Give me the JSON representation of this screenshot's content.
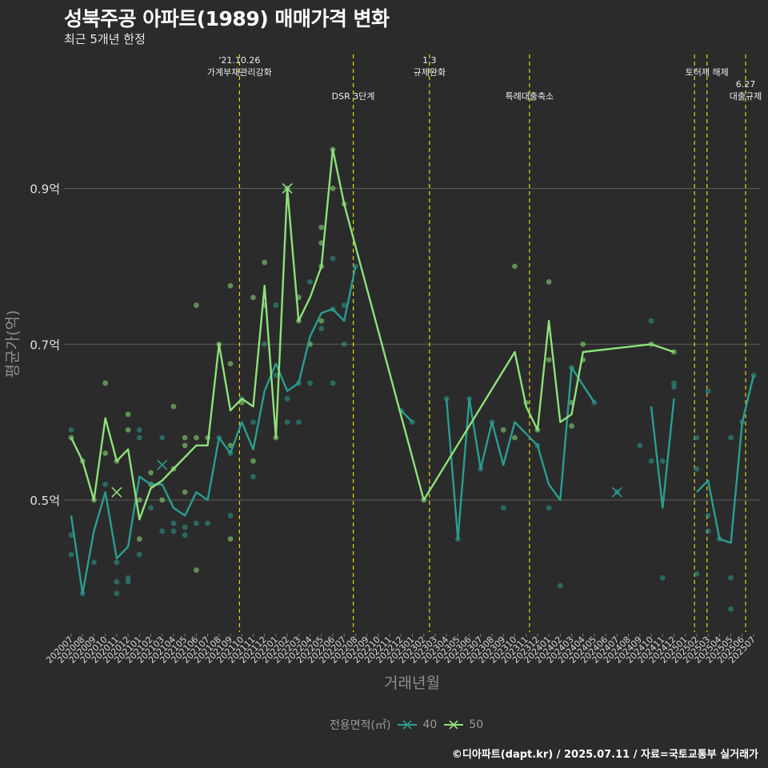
{
  "chart_data": {
    "type": "line",
    "title": "성북주공 아파트(1989) 매매가격 변화",
    "subtitle": "최근 5개년 한정",
    "xlabel": "거래년월",
    "ylabel": "평균가(억)",
    "caption": "©디아파트(dapt.kr) / 2025.07.11 / 자료=국토교통부 실거래가",
    "legend": {
      "title": "전용면적(㎡)",
      "placement": "bottom"
    },
    "ylim": [
      0.33,
      1.07
    ],
    "y_ticks": [
      {
        "value": 0.5,
        "label": "0.5억"
      },
      {
        "value": 0.7,
        "label": "0.7억"
      },
      {
        "value": 0.9,
        "label": "0.9억"
      }
    ],
    "grid": true,
    "categories": [
      "202007",
      "202008",
      "202009",
      "202010",
      "202011",
      "202012",
      "202101",
      "202102",
      "202103",
      "202104",
      "202105",
      "202106",
      "202107",
      "202108",
      "202109",
      "202110",
      "202111",
      "202112",
      "202201",
      "202202",
      "202203",
      "202204",
      "202205",
      "202206",
      "202207",
      "202208",
      "202209",
      "202210",
      "202211",
      "202212",
      "202301",
      "202302",
      "202303",
      "202304",
      "202305",
      "202306",
      "202307",
      "202308",
      "202309",
      "202310",
      "202311",
      "202312",
      "202401",
      "202402",
      "202403",
      "202404",
      "202405",
      "202406",
      "202407",
      "202408",
      "202409",
      "202410",
      "202411",
      "202412",
      "202501",
      "202502",
      "202503",
      "202504",
      "202505",
      "202506",
      "202507"
    ],
    "colors": {
      "40": "#2a9d8f",
      "50": "#8ee07a",
      "vline": "#e6d21c"
    },
    "series": [
      {
        "name": "40",
        "line": [
          [
            0,
            0.48
          ],
          [
            1,
            0.38
          ],
          [
            2,
            0.46
          ],
          [
            3,
            0.51
          ],
          [
            4,
            0.425
          ],
          [
            5,
            0.44
          ],
          [
            6,
            0.53
          ],
          [
            7,
            0.52
          ],
          [
            8,
            0.52
          ],
          [
            9,
            0.49
          ],
          [
            10,
            0.48
          ],
          [
            11,
            0.51
          ],
          [
            12,
            0.5
          ],
          [
            13,
            0.58
          ],
          [
            14,
            0.56
          ],
          [
            15,
            0.6
          ],
          [
            16,
            0.565
          ],
          [
            17,
            0.64
          ],
          [
            18,
            0.675
          ],
          [
            19,
            0.64
          ],
          [
            20,
            0.65
          ],
          [
            21,
            0.71
          ],
          [
            22,
            0.74
          ],
          [
            23,
            0.745
          ],
          [
            24,
            0.73
          ],
          [
            25,
            0.8
          ],
          null,
          [
            29,
            0.615
          ],
          [
            30,
            0.6
          ],
          null,
          [
            33,
            0.63
          ],
          [
            34,
            0.45
          ],
          [
            35,
            0.63
          ],
          [
            36,
            0.54
          ],
          [
            37,
            0.6
          ],
          [
            38,
            0.545
          ],
          [
            39,
            0.6
          ],
          [
            41,
            0.57
          ],
          [
            42,
            0.52
          ],
          [
            43,
            0.5
          ],
          [
            44,
            0.67
          ],
          [
            46,
            0.625
          ],
          null,
          [
            51,
            0.62
          ],
          [
            52,
            0.49
          ],
          [
            53,
            0.63
          ],
          null,
          [
            55,
            0.51
          ],
          [
            56,
            0.525
          ],
          [
            57,
            0.45
          ],
          [
            58,
            0.445
          ],
          [
            59,
            0.6
          ],
          [
            60,
            0.66
          ]
        ],
        "points": [
          [
            0,
            0.455
          ],
          [
            0,
            0.43
          ],
          [
            0,
            0.59
          ],
          [
            1,
            0.38
          ],
          [
            2,
            0.42
          ],
          [
            3,
            0.52
          ],
          [
            4,
            0.38
          ],
          [
            4,
            0.395
          ],
          [
            4,
            0.42
          ],
          [
            5,
            0.4
          ],
          [
            5,
            0.395
          ],
          [
            6,
            0.43
          ],
          [
            6,
            0.58
          ],
          [
            6,
            0.59
          ],
          [
            7,
            0.49
          ],
          [
            8,
            0.46
          ],
          [
            8,
            0.58
          ],
          [
            9,
            0.46
          ],
          [
            9,
            0.47
          ],
          [
            10,
            0.465
          ],
          [
            10,
            0.455
          ],
          [
            11,
            0.47
          ],
          [
            12,
            0.47
          ],
          [
            13,
            0.58
          ],
          [
            14,
            0.48
          ],
          [
            14,
            0.56
          ],
          [
            15,
            0.63
          ],
          [
            16,
            0.53
          ],
          [
            16,
            0.6
          ],
          [
            17,
            0.7
          ],
          [
            18,
            0.75
          ],
          [
            18,
            0.66
          ],
          [
            19,
            0.63
          ],
          [
            19,
            0.6
          ],
          [
            20,
            0.6
          ],
          [
            20,
            0.65
          ],
          [
            21,
            0.78
          ],
          [
            21,
            0.65
          ],
          [
            22,
            0.72
          ],
          [
            23,
            0.81
          ],
          [
            23,
            0.65
          ],
          [
            23,
            0.745
          ],
          [
            24,
            0.75
          ],
          [
            24,
            0.7
          ],
          [
            25,
            0.8
          ],
          [
            29,
            0.615
          ],
          [
            30,
            0.6
          ],
          [
            33,
            0.63
          ],
          [
            34,
            0.45
          ],
          [
            35,
            0.63
          ],
          [
            36,
            0.54
          ],
          [
            37,
            0.6
          ],
          [
            38,
            0.49
          ],
          [
            41,
            0.57
          ],
          [
            42,
            0.49
          ],
          [
            43,
            0.39
          ],
          [
            44,
            0.67
          ],
          [
            46,
            0.625
          ],
          [
            48,
            0.51
          ],
          [
            50,
            0.57
          ],
          [
            51,
            0.73
          ],
          [
            51,
            0.55
          ],
          [
            52,
            0.4
          ],
          [
            52,
            0.55
          ],
          [
            53,
            0.65
          ],
          [
            53,
            0.645
          ],
          [
            55,
            0.405
          ],
          [
            55,
            0.58
          ],
          [
            55,
            0.54
          ],
          [
            56,
            0.64
          ],
          [
            56,
            0.48
          ],
          [
            56,
            0.46
          ],
          [
            57,
            0.45
          ],
          [
            58,
            0.4
          ],
          [
            58,
            0.36
          ],
          [
            58,
            0.58
          ],
          [
            59,
            0.6
          ],
          [
            60,
            0.66
          ]
        ],
        "crosses": [
          [
            8,
            0.545
          ],
          [
            48,
            0.51
          ]
        ]
      },
      {
        "name": "50",
        "line": [
          [
            0,
            0.58
          ],
          [
            1,
            0.55
          ],
          [
            2,
            0.5
          ],
          [
            3,
            0.605
          ],
          [
            4,
            0.55
          ],
          [
            5,
            0.565
          ],
          [
            6,
            0.475
          ],
          [
            7,
            0.515
          ],
          [
            8,
            0.525
          ],
          [
            9,
            0.54
          ],
          [
            10,
            0.555
          ],
          [
            11,
            0.57
          ],
          [
            12,
            0.57
          ],
          [
            13,
            0.7
          ],
          [
            14,
            0.615
          ],
          [
            15,
            0.63
          ],
          [
            16,
            0.62
          ],
          [
            17,
            0.775
          ],
          [
            18,
            0.58
          ],
          [
            19,
            0.9
          ],
          [
            20,
            0.73
          ],
          [
            21,
            0.76
          ],
          [
            22,
            0.8
          ],
          [
            23,
            0.95
          ],
          [
            24,
            0.88
          ],
          [
            31,
            0.5
          ],
          [
            39,
            0.69
          ],
          [
            40,
            0.62
          ],
          [
            41,
            0.59
          ],
          [
            42,
            0.73
          ],
          [
            43,
            0.6
          ],
          [
            44,
            0.61
          ],
          [
            45,
            0.69
          ],
          [
            51,
            0.7
          ],
          [
            53,
            0.69
          ]
        ],
        "points": [
          [
            0,
            0.58
          ],
          [
            1,
            0.55
          ],
          [
            2,
            0.5
          ],
          [
            3,
            0.65
          ],
          [
            3,
            0.56
          ],
          [
            4,
            0.55
          ],
          [
            5,
            0.61
          ],
          [
            5,
            0.59
          ],
          [
            6,
            0.45
          ],
          [
            6,
            0.5
          ],
          [
            7,
            0.535
          ],
          [
            7,
            0.52
          ],
          [
            8,
            0.5
          ],
          [
            9,
            0.62
          ],
          [
            9,
            0.54
          ],
          [
            10,
            0.58
          ],
          [
            10,
            0.51
          ],
          [
            10,
            0.57
          ],
          [
            11,
            0.75
          ],
          [
            11,
            0.41
          ],
          [
            11,
            0.58
          ],
          [
            12,
            0.58
          ],
          [
            13,
            0.7
          ],
          [
            14,
            0.775
          ],
          [
            14,
            0.675
          ],
          [
            14,
            0.57
          ],
          [
            14,
            0.45
          ],
          [
            15,
            0.625
          ],
          [
            16,
            0.76
          ],
          [
            16,
            0.55
          ],
          [
            17,
            0.805
          ],
          [
            17,
            0.75
          ],
          [
            18,
            0.58
          ],
          [
            19,
            0.9
          ],
          [
            20,
            0.76
          ],
          [
            20,
            0.73
          ],
          [
            21,
            0.7
          ],
          [
            22,
            0.85
          ],
          [
            22,
            0.83
          ],
          [
            22,
            0.8
          ],
          [
            22,
            0.73
          ],
          [
            23,
            0.95
          ],
          [
            23,
            0.9
          ],
          [
            24,
            0.88
          ],
          [
            31,
            0.5
          ],
          [
            38,
            0.59
          ],
          [
            39,
            0.8
          ],
          [
            39,
            0.58
          ],
          [
            40,
            0.625
          ],
          [
            41,
            0.59
          ],
          [
            42,
            0.78
          ],
          [
            42,
            0.68
          ],
          [
            44,
            0.595
          ],
          [
            44,
            0.625
          ],
          [
            45,
            0.7
          ],
          [
            45,
            0.68
          ],
          [
            51,
            0.7
          ],
          [
            53,
            0.69
          ]
        ],
        "crosses": [
          [
            4,
            0.51
          ],
          [
            19,
            0.9
          ]
        ]
      }
    ],
    "annotations": [
      {
        "x": 14.8,
        "lines": [
          "'21.10.26",
          "가계부채관리강화"
        ],
        "label_row": 0
      },
      {
        "x": 24.8,
        "lines": [
          "DSR 3단계"
        ],
        "label_row": 1
      },
      {
        "x": 31.5,
        "lines": [
          "1.3",
          "규제완화"
        ],
        "label_row": 0
      },
      {
        "x": 40.3,
        "lines": [
          "특례대출축소"
        ],
        "label_row": 1
      },
      {
        "x": 54.8,
        "lines": [],
        "label_row": 0
      },
      {
        "x": 55.9,
        "lines": [
          "토허제 해제"
        ],
        "label_row": 0
      },
      {
        "x": 59.3,
        "lines": [
          "6.27",
          "대출규제"
        ],
        "label_row": 1
      }
    ]
  }
}
